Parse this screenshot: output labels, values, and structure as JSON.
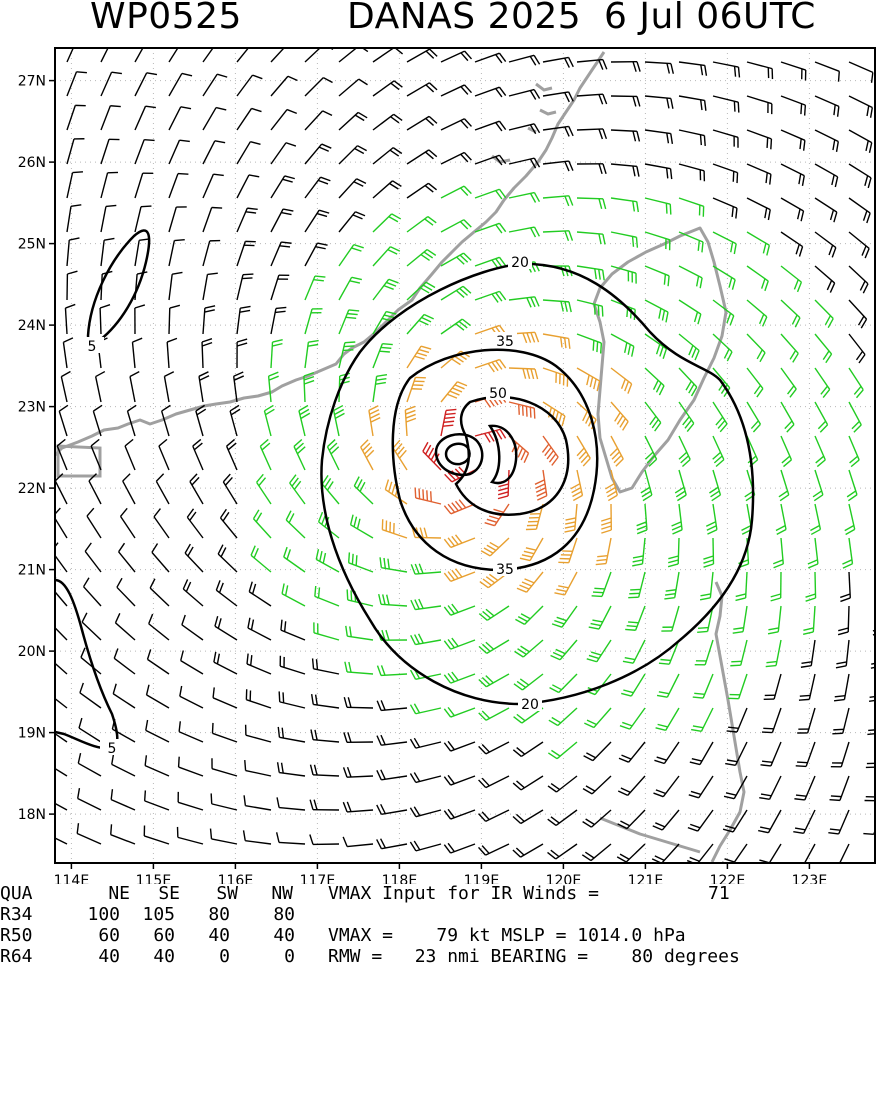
{
  "header": {
    "storm_id": "WP0525",
    "storm_name": "DANAS 2025",
    "date": "6 Jul 06UTC"
  },
  "chart_data": {
    "type": "wind-barb-map",
    "lon_ticks": [
      "114E",
      "115E",
      "116E",
      "117E",
      "118E",
      "119E",
      "120E",
      "121E",
      "122E",
      "123E"
    ],
    "lat_ticks": [
      "18N",
      "19N",
      "20N",
      "21N",
      "22N",
      "23N",
      "24N",
      "25N",
      "26N",
      "27N"
    ],
    "lon_range": [
      113.8,
      123.8
    ],
    "lat_range": [
      17.4,
      27.4
    ],
    "storm_center": {
      "lon": 118.9,
      "lat": 22.4
    },
    "contour_levels": [
      5,
      20,
      35,
      50
    ],
    "contour_labels": [
      "5",
      "20",
      "35",
      "50",
      "35",
      "20",
      "5"
    ],
    "wind_colors": {
      "low": "#000000",
      "gale": "#22cc22",
      "storm": "#e8a030",
      "hurricane": "#e06030",
      "core": "#d02020"
    },
    "coastline_color": "#a0a0a0",
    "grid": "dotted"
  },
  "info": {
    "header_row": [
      "QUA",
      "NE",
      "SE",
      "SW",
      "NW"
    ],
    "rows": [
      {
        "label": "R34",
        "values": [
          "100",
          "105",
          "80",
          "80"
        ]
      },
      {
        "label": "R50",
        "values": [
          "60",
          "60",
          "40",
          "40"
        ]
      },
      {
        "label": "R64",
        "values": [
          "40",
          "40",
          "0",
          "0"
        ]
      }
    ],
    "vmax_ir_text": "VMAX Input for IR Winds =",
    "vmax_ir_value": "71",
    "vmax_text": "VMAX =    79 kt MSLP = 1014.0 hPa",
    "rmw_text": "RMW =   23 nmi BEARING =    80 degrees"
  }
}
